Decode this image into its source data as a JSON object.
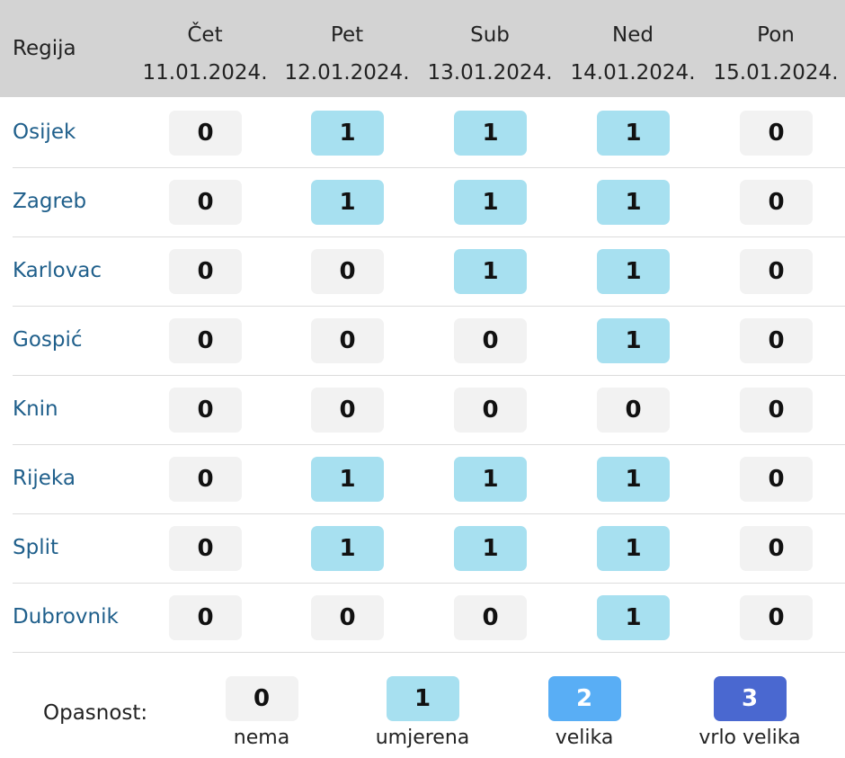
{
  "header": {
    "region_label": "Regija",
    "days": [
      {
        "name": "Čet",
        "date": "11.01.2024."
      },
      {
        "name": "Pet",
        "date": "12.01.2024."
      },
      {
        "name": "Sub",
        "date": "13.01.2024."
      },
      {
        "name": "Ned",
        "date": "14.01.2024."
      },
      {
        "name": "Pon",
        "date": "15.01.2024."
      }
    ]
  },
  "levels": {
    "0": {
      "bg": "#f2f2f2",
      "fg": "#111111"
    },
    "1": {
      "bg": "#a7e0f0",
      "fg": "#111111"
    },
    "2": {
      "bg": "#59aef5",
      "fg": "#ffffff"
    },
    "3": {
      "bg": "#4a68d0",
      "fg": "#ffffff"
    }
  },
  "rows": [
    {
      "region": "Osijek",
      "values": [
        "0",
        "1",
        "1",
        "1",
        "0"
      ]
    },
    {
      "region": "Zagreb",
      "values": [
        "0",
        "1",
        "1",
        "1",
        "0"
      ]
    },
    {
      "region": "Karlovac",
      "values": [
        "0",
        "0",
        "1",
        "1",
        "0"
      ]
    },
    {
      "region": "Gospić",
      "values": [
        "0",
        "0",
        "0",
        "1",
        "0"
      ]
    },
    {
      "region": "Knin",
      "values": [
        "0",
        "0",
        "0",
        "0",
        "0"
      ]
    },
    {
      "region": "Rijeka",
      "values": [
        "0",
        "1",
        "1",
        "1",
        "0"
      ]
    },
    {
      "region": "Split",
      "values": [
        "0",
        "1",
        "1",
        "1",
        "0"
      ]
    },
    {
      "region": "Dubrovnik",
      "values": [
        "0",
        "0",
        "0",
        "1",
        "0"
      ]
    }
  ],
  "legend": {
    "title": "Opasnost:",
    "items": [
      {
        "value": "0",
        "label": "nema"
      },
      {
        "value": "1",
        "label": "umjerena"
      },
      {
        "value": "2",
        "label": "velika"
      },
      {
        "value": "3",
        "label": "vrlo velika"
      }
    ]
  }
}
